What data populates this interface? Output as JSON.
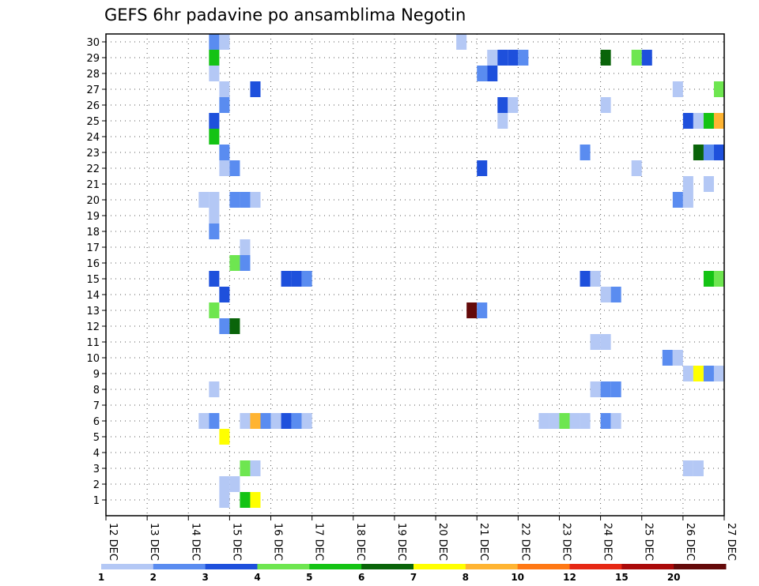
{
  "chart_data": {
    "type": "heatmap",
    "title": "GEFS 6hr padavine po ansamblima Negotin",
    "x_tick_labels": [
      "12 DEC",
      "13 DEC",
      "14 DEC",
      "15 DEC",
      "16 DEC",
      "17 DEC",
      "18 DEC",
      "19 DEC",
      "20 DEC",
      "21 DEC",
      "22 DEC",
      "23 DEC",
      "24 DEC",
      "25 DEC",
      "26 DEC",
      "27 DEC"
    ],
    "x_range_steps_6h": [
      0,
      60
    ],
    "y_tick_labels": [
      "1",
      "2",
      "3",
      "4",
      "5",
      "6",
      "7",
      "8",
      "9",
      "10",
      "11",
      "12",
      "13",
      "14",
      "15",
      "16",
      "17",
      "18",
      "19",
      "20",
      "21",
      "22",
      "23",
      "24",
      "25",
      "26",
      "27",
      "28",
      "29",
      "30"
    ],
    "y_range": [
      0,
      30
    ],
    "grid": true,
    "colorbar": {
      "position": "bottom",
      "labels": [
        "1",
        "2",
        "3",
        "4",
        "5",
        "6",
        "7",
        "8",
        "10",
        "12",
        "15",
        "20"
      ],
      "bins": [
        1,
        2,
        3,
        4,
        5,
        6,
        7,
        8,
        10,
        12,
        15,
        20
      ],
      "colors": [
        "#b4c8f5",
        "#5a8cf0",
        "#1e50dc",
        "#6ee650",
        "#14c314",
        "#0a640a",
        "#ffff00",
        "#ffb432",
        "#ff7814",
        "#e62814",
        "#aa0a0a",
        "#640a0a"
      ]
    },
    "cells": [
      {
        "x": 10.5,
        "y": 30,
        "v": 2
      },
      {
        "x": 11.5,
        "y": 30,
        "v": 1
      },
      {
        "x": 34.5,
        "y": 30,
        "v": 1
      },
      {
        "x": 10.5,
        "y": 29,
        "v": 5
      },
      {
        "x": 37.5,
        "y": 29,
        "v": 1
      },
      {
        "x": 38.5,
        "y": 29,
        "v": 3
      },
      {
        "x": 39.5,
        "y": 29,
        "v": 3
      },
      {
        "x": 40.5,
        "y": 29,
        "v": 2
      },
      {
        "x": 48.5,
        "y": 29,
        "v": 6
      },
      {
        "x": 51.5,
        "y": 29,
        "v": 4
      },
      {
        "x": 52.5,
        "y": 29,
        "v": 3
      },
      {
        "x": 10.5,
        "y": 28,
        "v": 1
      },
      {
        "x": 36.5,
        "y": 28,
        "v": 2
      },
      {
        "x": 37.5,
        "y": 28,
        "v": 3
      },
      {
        "x": 11.5,
        "y": 27,
        "v": 1
      },
      {
        "x": 14.5,
        "y": 27,
        "v": 3
      },
      {
        "x": 55.5,
        "y": 27,
        "v": 1
      },
      {
        "x": 59.5,
        "y": 27,
        "v": 4
      },
      {
        "x": 11.5,
        "y": 26,
        "v": 2
      },
      {
        "x": 38.5,
        "y": 26,
        "v": 3
      },
      {
        "x": 39.5,
        "y": 26,
        "v": 1
      },
      {
        "x": 48.5,
        "y": 26,
        "v": 1
      },
      {
        "x": 10.5,
        "y": 25,
        "v": 3
      },
      {
        "x": 38.5,
        "y": 25,
        "v": 1
      },
      {
        "x": 56.5,
        "y": 25,
        "v": 3
      },
      {
        "x": 57.5,
        "y": 25,
        "v": 1
      },
      {
        "x": 58.5,
        "y": 25,
        "v": 5
      },
      {
        "x": 59.5,
        "y": 25,
        "v": 8
      },
      {
        "x": 10.5,
        "y": 24,
        "v": 5
      },
      {
        "x": 11.5,
        "y": 23,
        "v": 2
      },
      {
        "x": 46.5,
        "y": 23,
        "v": 2
      },
      {
        "x": 57.5,
        "y": 23,
        "v": 6
      },
      {
        "x": 58.5,
        "y": 23,
        "v": 2
      },
      {
        "x": 59.5,
        "y": 23,
        "v": 3
      },
      {
        "x": 11.5,
        "y": 22,
        "v": 1
      },
      {
        "x": 12.5,
        "y": 22,
        "v": 2
      },
      {
        "x": 36.5,
        "y": 22,
        "v": 3
      },
      {
        "x": 51.5,
        "y": 22,
        "v": 1
      },
      {
        "x": 56.5,
        "y": 21,
        "v": 1
      },
      {
        "x": 58.5,
        "y": 21,
        "v": 1
      },
      {
        "x": 9.5,
        "y": 20,
        "v": 1
      },
      {
        "x": 10.5,
        "y": 20,
        "v": 1
      },
      {
        "x": 12.5,
        "y": 20,
        "v": 2
      },
      {
        "x": 13.5,
        "y": 20,
        "v": 2
      },
      {
        "x": 14.5,
        "y": 20,
        "v": 1
      },
      {
        "x": 55.5,
        "y": 20,
        "v": 2
      },
      {
        "x": 56.5,
        "y": 20,
        "v": 1
      },
      {
        "x": 10.5,
        "y": 19,
        "v": 1
      },
      {
        "x": 10.5,
        "y": 18,
        "v": 2
      },
      {
        "x": 13.5,
        "y": 17,
        "v": 1
      },
      {
        "x": 12.5,
        "y": 16,
        "v": 4
      },
      {
        "x": 13.5,
        "y": 16,
        "v": 2
      },
      {
        "x": 10.5,
        "y": 15,
        "v": 3
      },
      {
        "x": 17.5,
        "y": 15,
        "v": 3
      },
      {
        "x": 18.5,
        "y": 15,
        "v": 3
      },
      {
        "x": 19.5,
        "y": 15,
        "v": 2
      },
      {
        "x": 46.5,
        "y": 15,
        "v": 3
      },
      {
        "x": 47.5,
        "y": 15,
        "v": 1
      },
      {
        "x": 58.5,
        "y": 15,
        "v": 5
      },
      {
        "x": 59.5,
        "y": 15,
        "v": 4
      },
      {
        "x": 11.5,
        "y": 14,
        "v": 3
      },
      {
        "x": 48.5,
        "y": 14,
        "v": 1
      },
      {
        "x": 49.5,
        "y": 14,
        "v": 2
      },
      {
        "x": 10.5,
        "y": 13,
        "v": 4
      },
      {
        "x": 35.5,
        "y": 13,
        "v": 20
      },
      {
        "x": 36.5,
        "y": 13,
        "v": 2
      },
      {
        "x": 11.5,
        "y": 12,
        "v": 2
      },
      {
        "x": 12.5,
        "y": 12,
        "v": 6
      },
      {
        "x": 47.5,
        "y": 11,
        "v": 1
      },
      {
        "x": 48.5,
        "y": 11,
        "v": 1
      },
      {
        "x": 54.5,
        "y": 10,
        "v": 2
      },
      {
        "x": 55.5,
        "y": 10,
        "v": 1
      },
      {
        "x": 56.5,
        "y": 9,
        "v": 1
      },
      {
        "x": 57.5,
        "y": 9,
        "v": 7
      },
      {
        "x": 58.5,
        "y": 9,
        "v": 2
      },
      {
        "x": 59.5,
        "y": 9,
        "v": 1
      },
      {
        "x": 10.5,
        "y": 8,
        "v": 1
      },
      {
        "x": 47.5,
        "y": 8,
        "v": 1
      },
      {
        "x": 48.5,
        "y": 8,
        "v": 2
      },
      {
        "x": 49.5,
        "y": 8,
        "v": 2
      },
      {
        "x": 9.5,
        "y": 6,
        "v": 1
      },
      {
        "x": 10.5,
        "y": 6,
        "v": 2
      },
      {
        "x": 13.5,
        "y": 6,
        "v": 1
      },
      {
        "x": 14.5,
        "y": 6,
        "v": 8
      },
      {
        "x": 15.5,
        "y": 6,
        "v": 2
      },
      {
        "x": 16.5,
        "y": 6,
        "v": 1
      },
      {
        "x": 17.5,
        "y": 6,
        "v": 3
      },
      {
        "x": 18.5,
        "y": 6,
        "v": 2
      },
      {
        "x": 19.5,
        "y": 6,
        "v": 1
      },
      {
        "x": 42.5,
        "y": 6,
        "v": 1
      },
      {
        "x": 43.5,
        "y": 6,
        "v": 1
      },
      {
        "x": 44.5,
        "y": 6,
        "v": 4
      },
      {
        "x": 45.5,
        "y": 6,
        "v": 1
      },
      {
        "x": 46.5,
        "y": 6,
        "v": 1
      },
      {
        "x": 48.5,
        "y": 6,
        "v": 2
      },
      {
        "x": 49.5,
        "y": 6,
        "v": 1
      },
      {
        "x": 11.5,
        "y": 5,
        "v": 7
      },
      {
        "x": 13.5,
        "y": 3,
        "v": 4
      },
      {
        "x": 14.5,
        "y": 3,
        "v": 1
      },
      {
        "x": 56.5,
        "y": 3,
        "v": 1
      },
      {
        "x": 57.5,
        "y": 3,
        "v": 1
      },
      {
        "x": 11.5,
        "y": 2,
        "v": 1
      },
      {
        "x": 12.5,
        "y": 2,
        "v": 1
      },
      {
        "x": 11.5,
        "y": 1,
        "v": 1
      },
      {
        "x": 13.5,
        "y": 1,
        "v": 5
      },
      {
        "x": 14.5,
        "y": 1,
        "v": 7
      }
    ]
  }
}
